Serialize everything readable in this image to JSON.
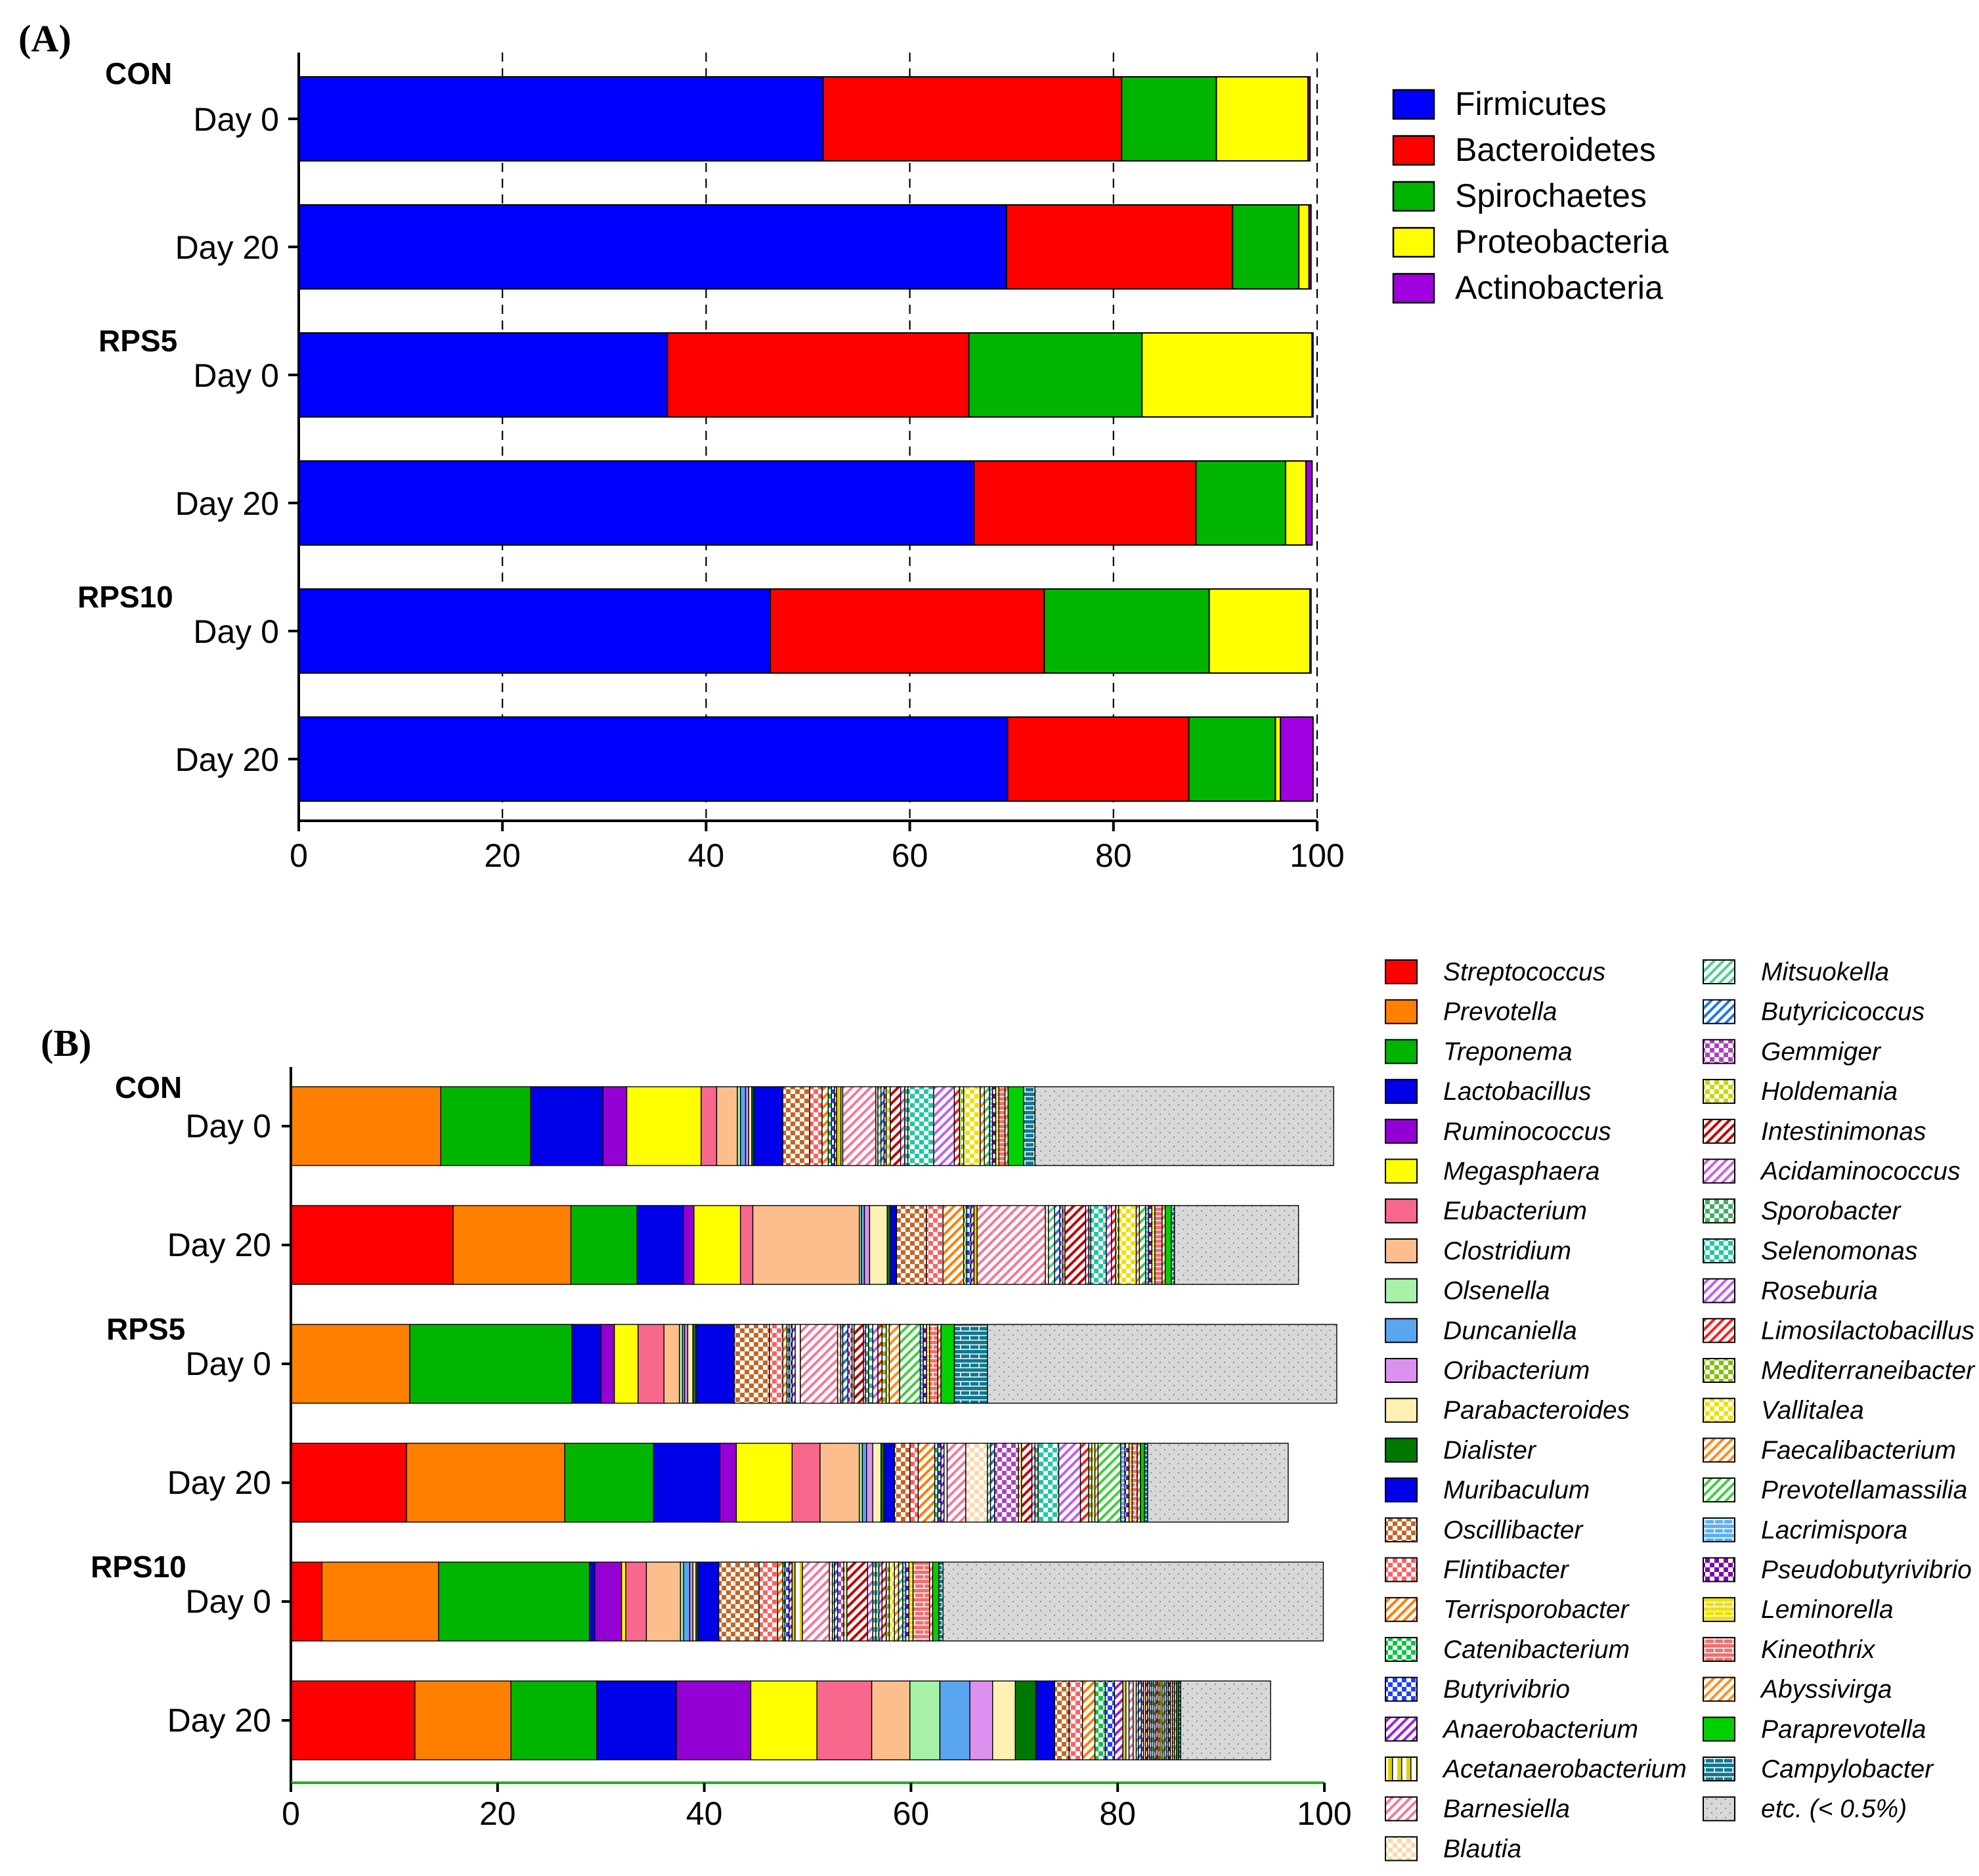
{
  "chart_data": [
    {
      "type": "bar",
      "orientation": "horizontal",
      "stacked": true,
      "panel_label": "(A)",
      "groups": [
        "CON",
        "RPS5",
        "RPS10"
      ],
      "categories": [
        "Day 0",
        "Day 20",
        "Day 0",
        "Day 20",
        "Day 0",
        "Day 20"
      ],
      "row_groups": [
        "CON",
        "CON",
        "RPS5",
        "RPS5",
        "RPS10",
        "RPS10"
      ],
      "xlim": [
        0,
        100
      ],
      "xticks": [
        "0",
        "20",
        "40",
        "60",
        "80",
        "100"
      ],
      "grid": "vertical dashed at 20, 40, 60, 80",
      "legend_position": "top-right",
      "series": [
        {
          "name": "Firmicutes",
          "color": "#0000ff",
          "values": [
            51.5,
            69.5,
            36.2,
            66.3,
            46.3,
            69.6
          ]
        },
        {
          "name": "Bacteroidetes",
          "color": "#ff0000",
          "values": [
            29.3,
            22.2,
            29.6,
            21.8,
            26.9,
            17.8
          ]
        },
        {
          "name": "Spirochaetes",
          "color": "#00b400",
          "values": [
            9.3,
            6.5,
            17.0,
            8.8,
            16.2,
            8.5
          ]
        },
        {
          "name": "Proteobacteria",
          "color": "#ffff00",
          "values": [
            9.0,
            1.0,
            16.7,
            2.0,
            9.9,
            0.5
          ]
        },
        {
          "name": "Actinobacteria",
          "color": "#a000e0",
          "values": [
            0.2,
            0.2,
            0.1,
            0.6,
            0.1,
            3.2
          ]
        }
      ]
    },
    {
      "type": "bar",
      "orientation": "horizontal",
      "stacked": true,
      "panel_label": "(B)",
      "groups": [
        "CON",
        "RPS5",
        "RPS10"
      ],
      "categories": [
        "Day 0",
        "Day 20",
        "Day 0",
        "Day 20",
        "Day 0",
        "Day 20"
      ],
      "row_groups": [
        "CON",
        "CON",
        "RPS5",
        "RPS5",
        "RPS10",
        "RPS10"
      ],
      "xlim": [
        0,
        100
      ],
      "xticks": [
        "0",
        "20",
        "40",
        "60",
        "80",
        "100"
      ],
      "legend_position": "right",
      "series": [
        {
          "name": "Streptococcus",
          "color": "#ff0000",
          "pattern": "solid",
          "values": [
            0.0,
            15.7,
            0.0,
            11.2,
            3.0,
            12.0
          ]
        },
        {
          "name": "Prevotella",
          "color": "#ff7f00",
          "pattern": "solid",
          "values": [
            14.5,
            11.4,
            11.5,
            15.3,
            11.3,
            9.3
          ]
        },
        {
          "name": "Treponema",
          "color": "#00b400",
          "pattern": "solid",
          "values": [
            8.7,
            6.4,
            15.7,
            8.6,
            14.6,
            8.3
          ]
        },
        {
          "name": "Lactobacillus",
          "color": "#0000e8",
          "pattern": "solid",
          "values": [
            7.0,
            4.5,
            2.8,
            6.4,
            0.5,
            7.7
          ]
        },
        {
          "name": "Ruminococcus",
          "color": "#9400d3",
          "pattern": "solid",
          "values": [
            2.3,
            1.0,
            1.3,
            1.6,
            2.6,
            7.2
          ]
        },
        {
          "name": "Megasphaera",
          "color": "#ffff00",
          "pattern": "solid",
          "values": [
            7.2,
            4.5,
            2.3,
            5.4,
            0.4,
            6.4
          ]
        },
        {
          "name": "Eubacterium",
          "color": "#f7688c",
          "pattern": "solid",
          "values": [
            1.5,
            1.2,
            2.5,
            2.7,
            2.0,
            5.3
          ]
        },
        {
          "name": "Clostridium",
          "color": "#fbbe8c",
          "pattern": "solid",
          "values": [
            2.0,
            10.3,
            1.5,
            3.8,
            3.3,
            3.7
          ]
        },
        {
          "name": "Olsenella",
          "color": "#a8f2a8",
          "pattern": "solid",
          "values": [
            0.3,
            0.2,
            0.3,
            0.3,
            0.3,
            2.9
          ]
        },
        {
          "name": "Duncaniella",
          "color": "#5aa5f0",
          "pattern": "solid",
          "values": [
            0.5,
            0.3,
            0.2,
            0.4,
            0.6,
            2.9
          ]
        },
        {
          "name": "Oribacterium",
          "color": "#dc91f0",
          "pattern": "solid",
          "values": [
            0.3,
            0.5,
            0.3,
            0.6,
            0.3,
            2.2
          ]
        },
        {
          "name": "Parabacteroides",
          "color": "#fff0b4",
          "pattern": "solid",
          "values": [
            0.3,
            1.7,
            0.5,
            0.8,
            0.3,
            2.2
          ]
        },
        {
          "name": "Dialister",
          "color": "#007800",
          "pattern": "solid",
          "values": [
            0.2,
            0.3,
            0.3,
            0.3,
            0.2,
            2.0
          ]
        },
        {
          "name": "Muribaculum",
          "color": "#0000e8",
          "pattern": "solid",
          "values": [
            2.8,
            0.6,
            3.7,
            1.0,
            2.0,
            1.8
          ]
        },
        {
          "name": "Oscillibacter",
          "color": "#c86420",
          "pattern": "checker",
          "values": [
            2.6,
            2.9,
            3.4,
            1.5,
            3.9,
            1.4
          ]
        },
        {
          "name": "Flintibacter",
          "color": "#ff6060",
          "pattern": "checker",
          "values": [
            1.2,
            1.6,
            1.3,
            0.8,
            1.8,
            1.3
          ]
        },
        {
          "name": "Terrisporobacter",
          "color": "#ff7f00",
          "pattern": "diag",
          "values": [
            0.6,
            2.0,
            0.4,
            1.6,
            0.5,
            1.2
          ]
        },
        {
          "name": "Catenibacterium",
          "color": "#00c840",
          "pattern": "checker",
          "values": [
            0.3,
            0.3,
            0.2,
            0.3,
            0.2,
            1.0
          ]
        },
        {
          "name": "Butyrivibrio",
          "color": "#2040ff",
          "pattern": "checker",
          "values": [
            0.3,
            0.4,
            0.3,
            0.3,
            0.4,
            0.9
          ]
        },
        {
          "name": "Anaerobacterium",
          "color": "#a020e0",
          "pattern": "diag",
          "values": [
            0.2,
            0.3,
            0.3,
            0.3,
            0.3,
            0.8
          ]
        },
        {
          "name": "Acetanaerobacterium",
          "color": "#e0d000",
          "pattern": "vert",
          "values": [
            0.6,
            0.3,
            0.5,
            0.3,
            1.0,
            0.6
          ]
        },
        {
          "name": "Barnesiella",
          "color": "#f27a9a",
          "pattern": "diag",
          "values": [
            3.2,
            6.6,
            3.6,
            1.8,
            2.6,
            0.4
          ]
        },
        {
          "name": "Blautia",
          "color": "#fcd9a8",
          "pattern": "checker",
          "values": [
            0.2,
            0.3,
            0.3,
            2.1,
            0.3,
            0.3
          ]
        },
        {
          "name": "Mitsuokella",
          "color": "#50d090",
          "pattern": "diag",
          "values": [
            0.3,
            0.6,
            0.2,
            0.3,
            0.2,
            0.2
          ]
        },
        {
          "name": "Butyricicoccus",
          "color": "#1e78f0",
          "pattern": "diag",
          "values": [
            0.3,
            0.5,
            0.5,
            0.4,
            0.3,
            0.3
          ]
        },
        {
          "name": "Gemmiger",
          "color": "#b040c0",
          "pattern": "checker",
          "values": [
            0.2,
            0.3,
            0.4,
            2.3,
            0.6,
            0.2
          ]
        },
        {
          "name": "Holdemania",
          "color": "#c8d800",
          "pattern": "checker",
          "values": [
            0.4,
            0.2,
            0.2,
            0.3,
            0.3,
            0.2
          ]
        },
        {
          "name": "Intestinimonas",
          "color": "#c00000",
          "pattern": "diag",
          "values": [
            1.0,
            2.0,
            0.9,
            1.0,
            2.0,
            0.2
          ]
        },
        {
          "name": "Acidaminococcus",
          "color": "#d060e0",
          "pattern": "diag",
          "values": [
            0.4,
            0.3,
            0.2,
            0.3,
            0.5,
            0.2
          ]
        },
        {
          "name": "Sporobacter",
          "color": "#40b060",
          "pattern": "checker",
          "values": [
            0.3,
            0.2,
            0.3,
            0.3,
            0.3,
            0.2
          ]
        },
        {
          "name": "Selenomonas",
          "color": "#20c8a0",
          "pattern": "checker",
          "values": [
            2.5,
            1.5,
            0.4,
            2.0,
            0.3,
            0.2
          ]
        },
        {
          "name": "Roseburia",
          "color": "#c060f0",
          "pattern": "diag",
          "values": [
            2.0,
            0.5,
            0.5,
            2.1,
            0.3,
            0.2
          ]
        },
        {
          "name": "Limosilactobacillus",
          "color": "#ff2020",
          "pattern": "diag",
          "values": [
            0.5,
            0.4,
            0.4,
            0.8,
            0.4,
            0.2
          ]
        },
        {
          "name": "Mediterraneibacter",
          "color": "#80c000",
          "pattern": "checker",
          "values": [
            0.4,
            0.3,
            0.4,
            0.3,
            0.3,
            0.2
          ]
        },
        {
          "name": "Vallitalea",
          "color": "#f0e000",
          "pattern": "checker",
          "values": [
            1.6,
            1.7,
            0.3,
            0.3,
            0.5,
            0.2
          ]
        },
        {
          "name": "Faecalibacterium",
          "color": "#ff8c20",
          "pattern": "diag",
          "values": [
            0.4,
            0.3,
            1.0,
            0.3,
            0.4,
            0.2
          ]
        },
        {
          "name": "Prevotellamassilia",
          "color": "#40d040",
          "pattern": "diag",
          "values": [
            0.5,
            0.6,
            2.0,
            2.2,
            0.4,
            0.2
          ]
        },
        {
          "name": "Lacrimispora",
          "color": "#60b0f0",
          "pattern": "horiz",
          "values": [
            0.3,
            0.3,
            0.3,
            0.4,
            0.3,
            0.2
          ]
        },
        {
          "name": "Pseudobutyrivibrio",
          "color": "#8000b0",
          "pattern": "checker",
          "values": [
            0.3,
            0.3,
            0.3,
            0.4,
            0.3,
            0.2
          ]
        },
        {
          "name": "Leminorella",
          "color": "#f0e000",
          "pattern": "horiz",
          "values": [
            0.3,
            0.3,
            0.3,
            0.3,
            0.4,
            0.2
          ]
        },
        {
          "name": "Kineothrix",
          "color": "#f07070",
          "pattern": "horiz",
          "values": [
            0.6,
            0.7,
            0.8,
            0.5,
            1.6,
            0.2
          ]
        },
        {
          "name": "Abyssivirga",
          "color": "#ff9020",
          "pattern": "diag",
          "values": [
            0.3,
            0.3,
            0.3,
            0.3,
            0.3,
            0.2
          ]
        },
        {
          "name": "Paraprevotella",
          "color": "#00d000",
          "pattern": "solid",
          "values": [
            1.5,
            0.6,
            1.3,
            0.4,
            0.6,
            0.2
          ]
        },
        {
          "name": "Campylobacter",
          "color": "#107890",
          "pattern": "horiz",
          "values": [
            1.1,
            0.3,
            3.2,
            0.3,
            0.4,
            0.2
          ]
        },
        {
          "name": "etc. (< 0.5%)",
          "color": "#d8d8d8",
          "pattern": "dots",
          "values": [
            28.9,
            12.0,
            33.8,
            13.6,
            36.8,
            8.7
          ]
        }
      ]
    }
  ]
}
